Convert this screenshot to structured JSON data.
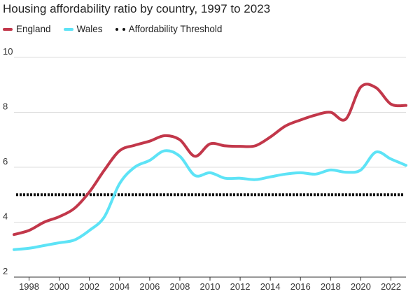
{
  "chart_data": {
    "type": "line",
    "title": "Housing affordability ratio by country, 1997 to 2023",
    "xlabel": "",
    "ylabel": "",
    "xlim": [
      1997,
      2023
    ],
    "ylim": [
      2,
      10
    ],
    "x_ticks": [
      1998,
      2000,
      2002,
      2004,
      2006,
      2008,
      2010,
      2012,
      2014,
      2016,
      2018,
      2020,
      2022
    ],
    "y_ticks": [
      2,
      4,
      6,
      8,
      10
    ],
    "grid": "horizontal",
    "legend": "top-left",
    "x": [
      1997,
      1998,
      1999,
      2000,
      2001,
      2002,
      2003,
      2004,
      2005,
      2006,
      2007,
      2008,
      2009,
      2010,
      2011,
      2012,
      2013,
      2014,
      2015,
      2016,
      2017,
      2018,
      2019,
      2020,
      2021,
      2022,
      2023
    ],
    "series": [
      {
        "name": "England",
        "color": "#c2374a",
        "values": [
          3.55,
          3.7,
          4.0,
          4.2,
          4.5,
          5.1,
          5.9,
          6.6,
          6.8,
          6.95,
          7.15,
          7.0,
          6.4,
          6.85,
          6.78,
          6.76,
          6.78,
          7.1,
          7.5,
          7.72,
          7.9,
          8.0,
          7.75,
          8.92,
          8.9,
          8.3,
          8.25
        ]
      },
      {
        "name": "Wales",
        "color": "#5de3f6",
        "values": [
          3.0,
          3.05,
          3.15,
          3.25,
          3.35,
          3.7,
          4.2,
          5.4,
          6.0,
          6.25,
          6.6,
          6.4,
          5.7,
          5.8,
          5.6,
          5.6,
          5.55,
          5.65,
          5.75,
          5.8,
          5.75,
          5.9,
          5.82,
          5.9,
          6.55,
          6.3,
          6.07
        ]
      }
    ],
    "reference_lines": [
      {
        "name": "Affordability Threshold",
        "value": 5.0,
        "color": "#111111",
        "style": "dotted"
      }
    ]
  }
}
